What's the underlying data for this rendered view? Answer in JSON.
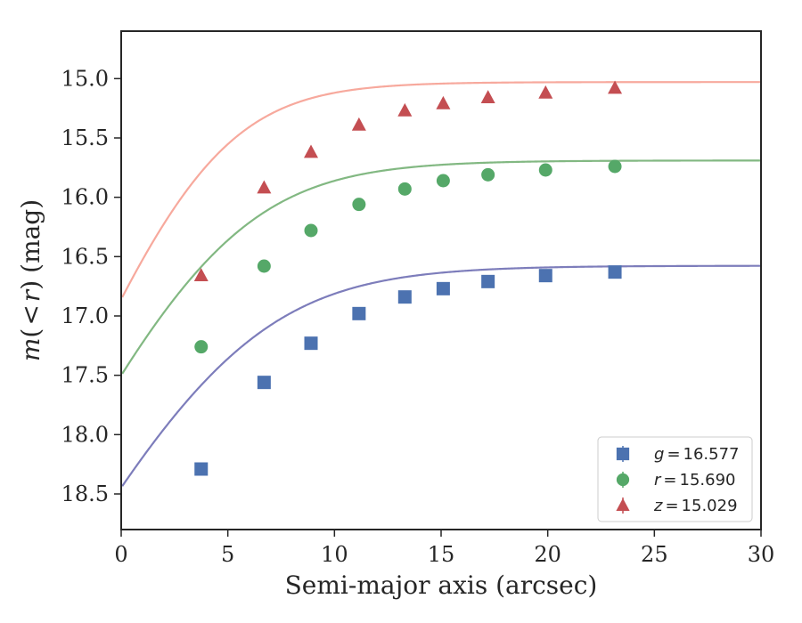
{
  "chart_data": {
    "type": "line",
    "title": "",
    "xlabel": "Semi-major axis (arcsec)",
    "ylabel": "m(< r) (mag)",
    "ylabel_parts": {
      "m": "m",
      "open": "(",
      "lt": "<",
      "r": "r",
      "close": ")",
      "unit": "(mag)"
    },
    "xlim": [
      0,
      30
    ],
    "ylim": [
      18.8,
      14.6
    ],
    "y_inverted": true,
    "xticks": [
      0,
      5,
      10,
      15,
      20,
      25,
      30
    ],
    "xtick_labels": [
      "0",
      "5",
      "10",
      "15",
      "20",
      "25",
      "30"
    ],
    "yticks": [
      15.0,
      15.5,
      16.0,
      16.5,
      17.0,
      17.5,
      18.0,
      18.5
    ],
    "ytick_labels": [
      "15.0",
      "15.5",
      "16.0",
      "16.5",
      "17.0",
      "17.5",
      "18.0",
      "18.5"
    ],
    "grid": false,
    "legend_position": "bottom-right",
    "x": [
      3.75,
      6.7,
      8.9,
      11.15,
      13.3,
      15.1,
      17.2,
      19.9,
      23.15
    ],
    "series": [
      {
        "name": "g",
        "legend_var": "g",
        "legend_value": "16.577",
        "marker": "square",
        "marker_color": "#4c72b0",
        "curve_color": "#7d7dbb",
        "values": [
          18.29,
          17.56,
          17.23,
          16.98,
          16.84,
          16.77,
          16.71,
          16.66,
          16.63
        ],
        "model": {
          "asymptote": 16.577,
          "amplitude": 4.6,
          "scale": 3.4
        }
      },
      {
        "name": "r",
        "legend_var": "r",
        "legend_value": "15.690",
        "marker": "circle",
        "marker_color": "#55a868",
        "curve_color": "#82b882",
        "values": [
          17.26,
          16.58,
          16.28,
          16.06,
          15.93,
          15.86,
          15.81,
          15.77,
          15.74
        ],
        "model": {
          "asymptote": 15.69,
          "amplitude": 4.3,
          "scale": 3.1
        }
      },
      {
        "name": "z",
        "legend_var": "z",
        "legend_value": "15.029",
        "marker": "triangle",
        "marker_color": "#c44e52",
        "curve_color": "#f7a99d",
        "values": [
          16.66,
          15.92,
          15.62,
          15.39,
          15.27,
          15.21,
          15.16,
          15.12,
          15.08
        ],
        "model": {
          "asymptote": 15.029,
          "amplitude": 4.4,
          "scale": 2.55
        }
      }
    ]
  }
}
